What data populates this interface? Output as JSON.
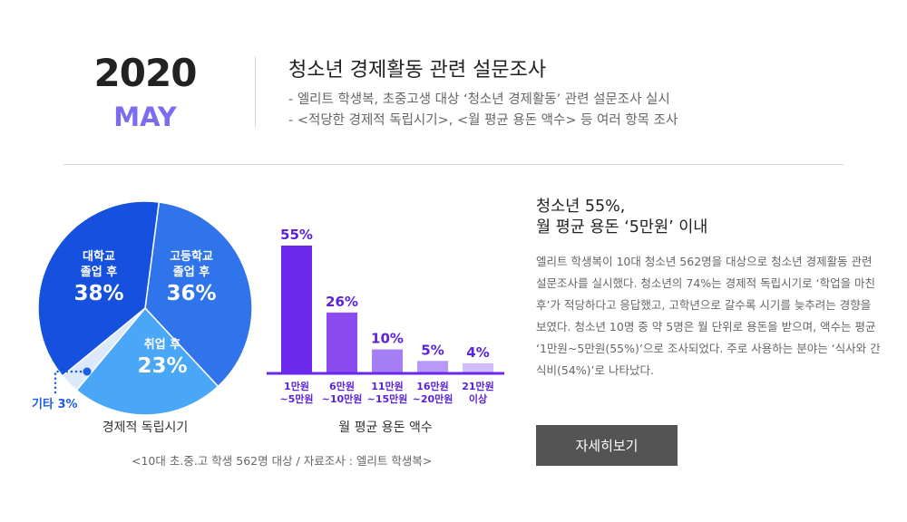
{
  "header": {
    "year": "2020",
    "month": "MAY",
    "title": "청소년 경제활동 관련 설문조사",
    "bullets": [
      "-  엘리트 학생복, 초중고생 대상 ‘청소년 경제활동’ 관련 설문조사 실시",
      "-  <적당한 경제적 독립시기>, <월 평균 용돈 액수> 등 여러 항목 조사"
    ]
  },
  "chart_data": [
    {
      "type": "pie",
      "title": "경제적 독립시기",
      "slices": [
        {
          "label": "고등학교\n졸업 후",
          "label_lines": [
            "고등학교",
            "졸업 후"
          ],
          "value": 36,
          "value_label": "36%",
          "color": "#2f74ea"
        },
        {
          "label": "취업 후",
          "label_lines": [
            "취업 후"
          ],
          "value": 23,
          "value_label": "23%",
          "color": "#4aa6f7"
        },
        {
          "label": "기타",
          "label_lines": [
            "기타 3%"
          ],
          "value": 3,
          "value_label": "3%",
          "color": "#dbe9fb"
        },
        {
          "label": "대학교\n졸업 후",
          "label_lines": [
            "대학교",
            "졸업 후"
          ],
          "value": 38,
          "value_label": "38%",
          "color": "#1650de"
        }
      ]
    },
    {
      "type": "bar",
      "title": "월 평균 용돈 액수",
      "categories": [
        "1만원\n~5만원",
        "6만원\n~10만원",
        "11만원\n~15만원",
        "16만원\n~20만원",
        "21만원\n이상"
      ],
      "category_lines": [
        [
          "1만원",
          "~5만원"
        ],
        [
          "6만원",
          "~10만원"
        ],
        [
          "11만원",
          "~15만원"
        ],
        [
          "16만원",
          "~20만원"
        ],
        [
          "21만원",
          "이상"
        ]
      ],
      "values": [
        55,
        26,
        10,
        5,
        4
      ],
      "value_labels": [
        "55%",
        "26%",
        "10%",
        "5%",
        "4%"
      ],
      "colors": [
        "#6a28ea",
        "#8a4cf0",
        "#a57ef4",
        "#b999f6",
        "#d0bdf9"
      ],
      "ylim": [
        0,
        55
      ]
    }
  ],
  "source": "<10대 초.중.고 학생 562명 대상 / 자료조사 : 엘리트 학생복>",
  "sidebar": {
    "title_line1": "청소년 55%,",
    "title_line2": "월 평균 용돈 ‘5만원’ 이내",
    "body": "엘리트 학생복이 10대 청소년 562명을 대상으로 청소년 경제활동 관련 설문조사를 실시했다. 청소년의 74%는 경제적 독립시기로 ‘학업을 마친 후’가 적당하다고 응답했고, 고학년으로 갈수록 시기를 늦추려는 경향을 보였다. 청소년 10명 중 약 5명은 월 단위로 용돈을 받으며, 액수는 평균 ‘1만원~5만원(55%)’으로 조사되었다.  주로 사용하는 분야는 ‘식사와 간식비(54%)’로 나타났다.",
    "button_label": "자세히보기"
  }
}
